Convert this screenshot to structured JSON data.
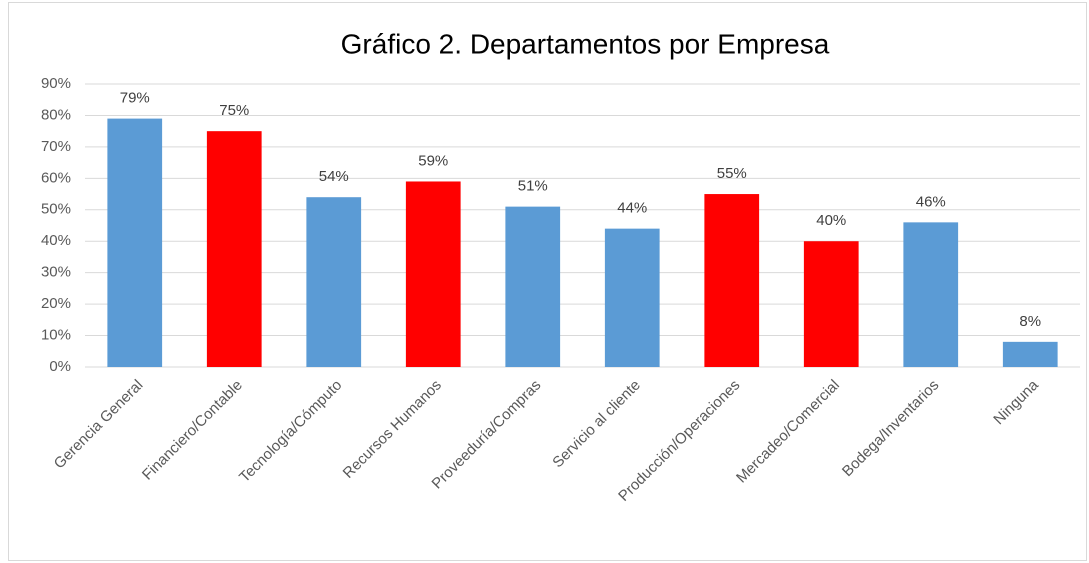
{
  "chart_data": {
    "type": "bar",
    "title": "Gráfico 2. Departamentos por Empresa",
    "categories": [
      "Gerencia General",
      "Financiero/Contable",
      "Tecnología/Cómputo",
      "Recursos Humanos",
      "Proveeduría/Compras",
      "Servicio al cliente",
      "Producción/Operaciones",
      "Mercadeo/Comercial",
      "Bodega/Inventarios",
      "Ninguna"
    ],
    "values": [
      79,
      75,
      54,
      59,
      51,
      44,
      55,
      40,
      46,
      8
    ],
    "value_labels": [
      "79%",
      "75%",
      "54%",
      "59%",
      "51%",
      "44%",
      "55%",
      "40%",
      "46%",
      "8%"
    ],
    "colors": [
      "#5b9bd5",
      "#ff0000",
      "#5b9bd5",
      "#ff0000",
      "#5b9bd5",
      "#5b9bd5",
      "#ff0000",
      "#ff0000",
      "#5b9bd5",
      "#5b9bd5"
    ],
    "ylim": [
      0,
      90
    ],
    "yticks": [
      {
        "value": 0,
        "label": "0%"
      },
      {
        "value": 10,
        "label": "10%"
      },
      {
        "value": 20,
        "label": "20%"
      },
      {
        "value": 30,
        "label": "30%"
      },
      {
        "value": 40,
        "label": "40%"
      },
      {
        "value": 50,
        "label": "50%"
      },
      {
        "value": 60,
        "label": "60%"
      },
      {
        "value": 70,
        "label": "70%"
      },
      {
        "value": 80,
        "label": "80%"
      },
      {
        "value": 90,
        "label": "90%"
      }
    ],
    "grid": true
  }
}
